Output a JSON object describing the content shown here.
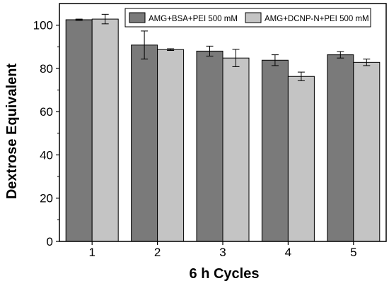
{
  "chart_data": {
    "type": "bar",
    "title": "",
    "xlabel": "6 h Cycles",
    "ylabel": "Dextrose Equivalent",
    "categories": [
      "1",
      "2",
      "3",
      "4",
      "5"
    ],
    "ylim": [
      0,
      110
    ],
    "yticks": [
      0,
      20,
      40,
      60,
      80,
      100
    ],
    "grid": false,
    "legend_position": "top-right",
    "series": [
      {
        "name": "AMG+BSA+PEI 500 mM",
        "color": "#7a7a7a",
        "values": [
          102.5,
          90.8,
          88.0,
          83.8,
          86.3
        ],
        "errors": [
          0.3,
          6.5,
          2.3,
          2.5,
          1.5
        ]
      },
      {
        "name": "AMG+DCNP-N+PEI 500 mM",
        "color": "#c4c4c4",
        "values": [
          102.8,
          88.7,
          84.8,
          76.3,
          82.8
        ],
        "errors": [
          2.2,
          0.4,
          4.0,
          2.0,
          1.5
        ]
      }
    ]
  }
}
